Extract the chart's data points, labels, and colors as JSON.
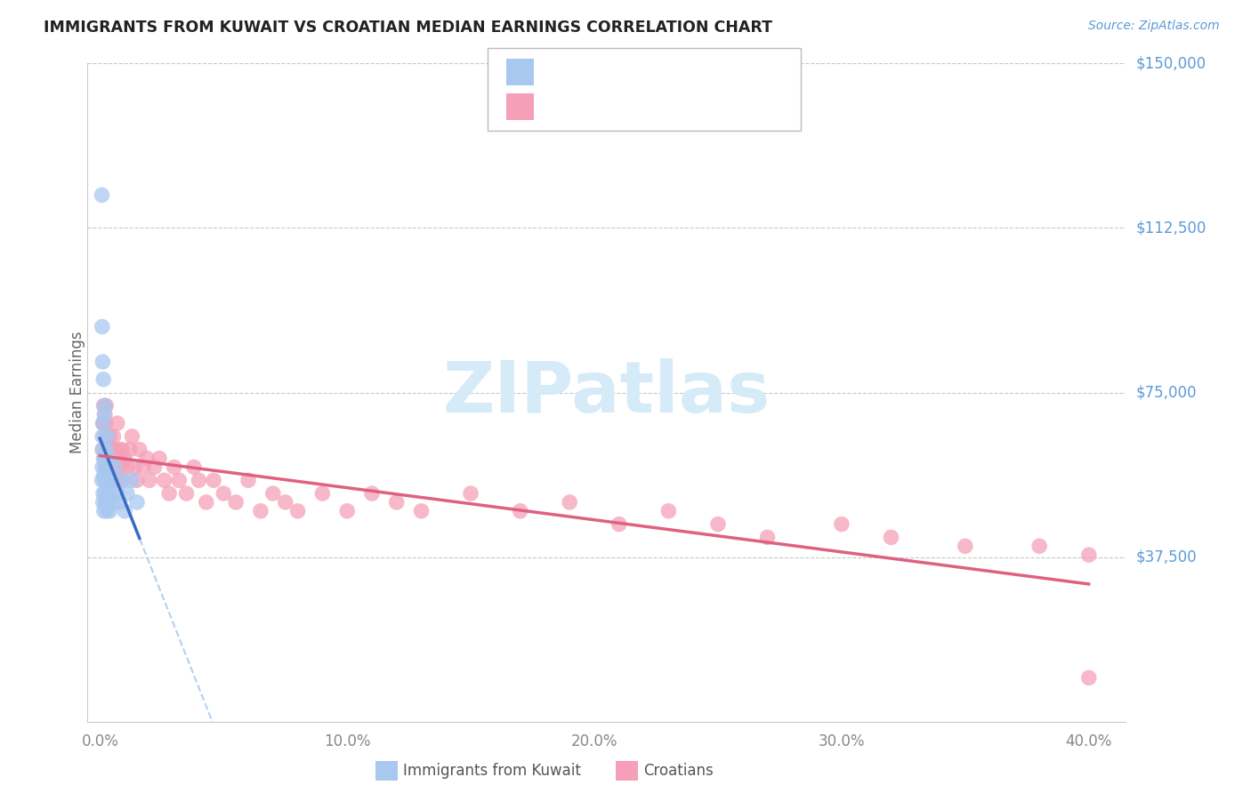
{
  "title": "IMMIGRANTS FROM KUWAIT VS CROATIAN MEDIAN EARNINGS CORRELATION CHART",
  "source": "Source: ZipAtlas.com",
  "ylabel": "Median Earnings",
  "color_blue_fill": "#A8C8F0",
  "color_pink_fill": "#F5A0B8",
  "color_blue_line": "#3A6BC4",
  "color_pink_line": "#E06080",
  "color_blue_dashed": "#A8C8F0",
  "color_axis_right": "#5B9BD5",
  "color_watermark": "#D5EBF8",
  "color_title": "#222222",
  "color_source": "#5B9BD5",
  "color_grid": "#C8C8CC",
  "y_ticks": [
    0,
    37500,
    75000,
    112500,
    150000
  ],
  "y_tick_labels": [
    "",
    "$37,500",
    "$75,000",
    "$112,500",
    "$150,000"
  ],
  "x_ticks": [
    0.0,
    0.1,
    0.2,
    0.3,
    0.4
  ],
  "x_tick_labels": [
    "0.0%",
    "10.0%",
    "20.0%",
    "30.0%",
    "40.0%"
  ],
  "x_min": -0.005,
  "x_max": 0.415,
  "y_min": 0,
  "y_max": 150000,
  "label_kuwait": "Immigrants from Kuwait",
  "label_croatian": "Croatians",
  "kuwait_x": [
    0.0008,
    0.001,
    0.001,
    0.0012,
    0.0012,
    0.0013,
    0.0013,
    0.0015,
    0.0015,
    0.0016,
    0.0018,
    0.0018,
    0.002,
    0.002,
    0.002,
    0.0022,
    0.0022,
    0.0025,
    0.0025,
    0.0028,
    0.0028,
    0.003,
    0.003,
    0.0032,
    0.0035,
    0.0038,
    0.004,
    0.0045,
    0.005,
    0.0055,
    0.006,
    0.007,
    0.008,
    0.009,
    0.01,
    0.011,
    0.013,
    0.015,
    0.0008,
    0.0009,
    0.0011,
    0.0014
  ],
  "kuwait_y": [
    55000,
    58000,
    65000,
    50000,
    62000,
    52000,
    68000,
    56000,
    60000,
    48000,
    55000,
    70000,
    52000,
    60000,
    72000,
    50000,
    58000,
    55000,
    62000,
    48000,
    55000,
    50000,
    65000,
    52000,
    60000,
    55000,
    48000,
    52000,
    55000,
    50000,
    58000,
    52000,
    50000,
    55000,
    48000,
    52000,
    55000,
    50000,
    120000,
    90000,
    82000,
    78000
  ],
  "croatian_x": [
    0.001,
    0.0012,
    0.0015,
    0.0018,
    0.002,
    0.0022,
    0.0025,
    0.0028,
    0.003,
    0.0032,
    0.0035,
    0.0038,
    0.004,
    0.0042,
    0.0045,
    0.0048,
    0.005,
    0.0055,
    0.0058,
    0.006,
    0.0065,
    0.007,
    0.0072,
    0.0075,
    0.008,
    0.0085,
    0.009,
    0.0095,
    0.01,
    0.011,
    0.012,
    0.013,
    0.014,
    0.015,
    0.016,
    0.0175,
    0.019,
    0.02,
    0.022,
    0.024,
    0.026,
    0.028,
    0.03,
    0.032,
    0.035,
    0.038,
    0.04,
    0.043,
    0.046,
    0.05,
    0.055,
    0.06,
    0.065,
    0.07,
    0.075,
    0.08,
    0.09,
    0.1,
    0.11,
    0.12,
    0.13,
    0.15,
    0.17,
    0.19,
    0.21,
    0.23,
    0.25,
    0.27,
    0.3,
    0.32,
    0.35,
    0.38,
    0.4,
    0.0015,
    0.002,
    0.0025,
    0.003,
    0.4
  ],
  "croatian_y": [
    62000,
    68000,
    72000,
    60000,
    65000,
    58000,
    68000,
    62000,
    58000,
    65000,
    60000,
    58000,
    65000,
    55000,
    62000,
    60000,
    58000,
    65000,
    55000,
    62000,
    58000,
    68000,
    55000,
    62000,
    60000,
    58000,
    62000,
    55000,
    60000,
    58000,
    62000,
    65000,
    58000,
    55000,
    62000,
    58000,
    60000,
    55000,
    58000,
    60000,
    55000,
    52000,
    58000,
    55000,
    52000,
    58000,
    55000,
    50000,
    55000,
    52000,
    50000,
    55000,
    48000,
    52000,
    50000,
    48000,
    52000,
    48000,
    52000,
    50000,
    48000,
    52000,
    48000,
    50000,
    45000,
    48000,
    45000,
    42000,
    45000,
    42000,
    40000,
    40000,
    38000,
    68000,
    70000,
    72000,
    65000,
    10000
  ]
}
